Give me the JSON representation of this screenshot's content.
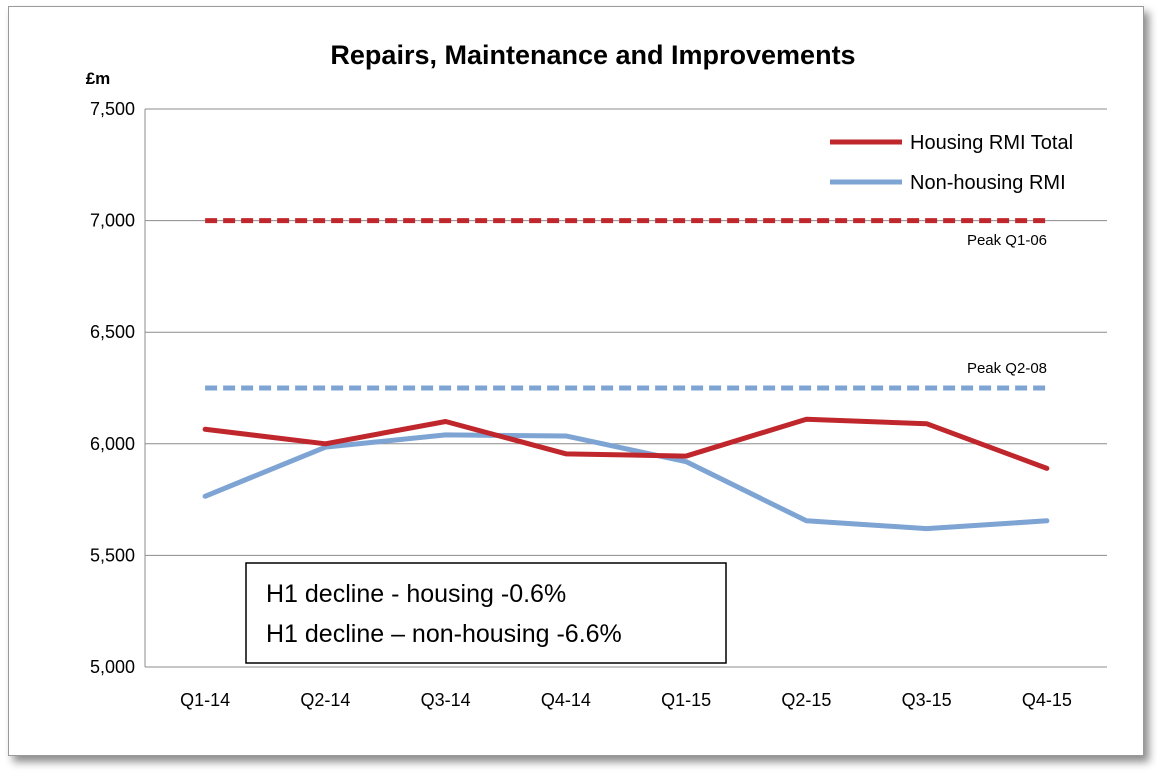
{
  "chart_data": {
    "type": "line",
    "title": "Repairs, Maintenance and Improvements",
    "y_unit": "£m",
    "categories": [
      "Q1-14",
      "Q2-14",
      "Q3-14",
      "Q4-14",
      "Q1-15",
      "Q2-15",
      "Q3-15",
      "Q4-15"
    ],
    "ylim": [
      5000,
      7500
    ],
    "y_ticks": [
      5000,
      5500,
      6000,
      6500,
      7000,
      7500
    ],
    "y_tick_labels": [
      "5,000",
      "5,500",
      "6,000",
      "6,500",
      "7,000",
      "7,500"
    ],
    "grid": true,
    "legend_position": "top-right",
    "series": [
      {
        "name": "Housing RMI Total",
        "color": "#c0272d",
        "values": [
          6065,
          6000,
          6100,
          5955,
          5945,
          6110,
          6090,
          5890
        ]
      },
      {
        "name": "Non-housing RMI",
        "color": "#7ea4d4",
        "values": [
          5765,
          5985,
          6040,
          6035,
          5920,
          5655,
          5620,
          5655
        ]
      }
    ],
    "reference_lines": [
      {
        "label": "Peak Q1-06",
        "value": 7000,
        "color": "#c0272d",
        "style": "dashed"
      },
      {
        "label": "Peak Q2-08",
        "value": 6250,
        "color": "#7ea4d4",
        "style": "dashed"
      }
    ],
    "annotation": {
      "lines": [
        "H1 decline - housing -0.6%",
        "H1 decline – non-housing -6.6%"
      ]
    }
  }
}
